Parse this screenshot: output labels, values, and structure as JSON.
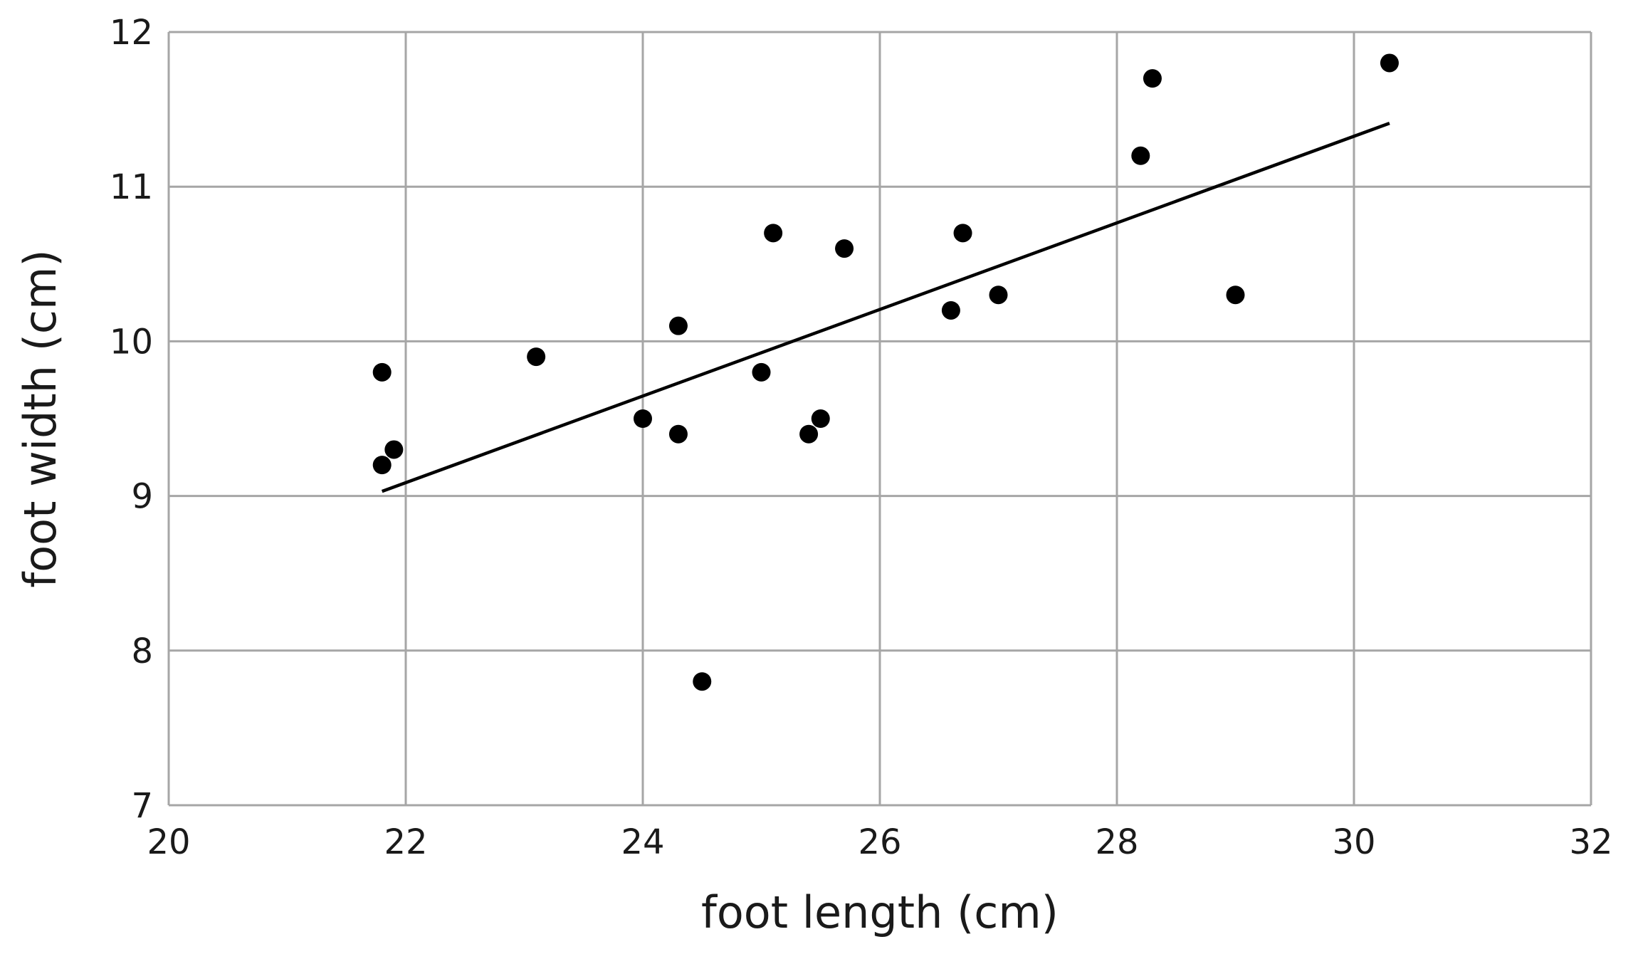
{
  "chart_data": {
    "type": "scatter",
    "xlabel": "foot length (cm)",
    "ylabel": "foot width (cm)",
    "xlim": [
      20,
      32
    ],
    "ylim": [
      7,
      12
    ],
    "xticks": [
      20,
      22,
      24,
      26,
      28,
      30,
      32
    ],
    "yticks": [
      7,
      8,
      9,
      10,
      11,
      12
    ],
    "grid": true,
    "points": [
      [
        21.8,
        9.8
      ],
      [
        21.8,
        9.2
      ],
      [
        21.9,
        9.3
      ],
      [
        23.1,
        9.9
      ],
      [
        24.0,
        9.5
      ],
      [
        24.3,
        10.1
      ],
      [
        24.3,
        9.4
      ],
      [
        24.5,
        7.8
      ],
      [
        25.0,
        9.8
      ],
      [
        25.1,
        10.7
      ],
      [
        25.4,
        9.4
      ],
      [
        25.5,
        9.5
      ],
      [
        25.7,
        10.6
      ],
      [
        26.6,
        10.2
      ],
      [
        26.7,
        10.7
      ],
      [
        27.0,
        10.3
      ],
      [
        28.2,
        11.2
      ],
      [
        28.3,
        11.7
      ],
      [
        29.0,
        10.3
      ],
      [
        30.3,
        11.8
      ]
    ],
    "fit_line": [
      [
        21.8,
        9.03
      ],
      [
        30.3,
        11.41
      ]
    ],
    "colors": {
      "points": "#000000",
      "line": "#000000",
      "grid": "#a6a6a6"
    }
  }
}
